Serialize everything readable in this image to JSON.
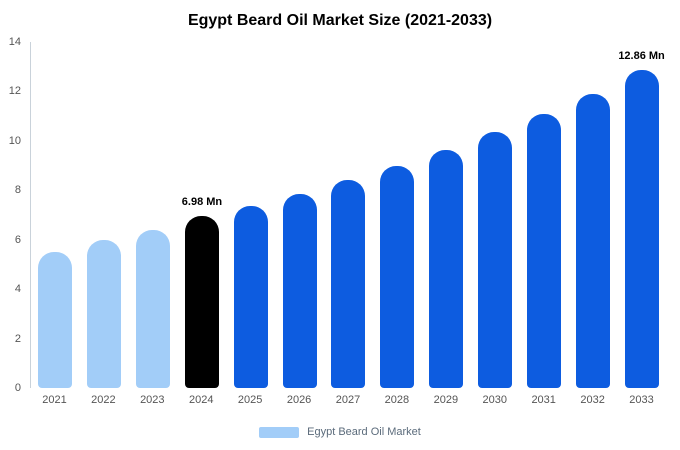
{
  "chart_data": {
    "type": "bar",
    "title": "Egypt Beard Oil Market Size (2021-2033)",
    "xlabel": "",
    "ylabel": "",
    "ylim": [
      0,
      14
    ],
    "yticks": [
      0,
      2,
      4,
      6,
      8,
      10,
      12,
      14
    ],
    "grid": false,
    "categories": [
      "2021",
      "2022",
      "2023",
      "2024",
      "2025",
      "2026",
      "2027",
      "2028",
      "2029",
      "2030",
      "2031",
      "2032",
      "2033"
    ],
    "values": [
      5.5,
      6.0,
      6.4,
      6.98,
      7.35,
      7.85,
      8.4,
      9.0,
      9.65,
      10.35,
      11.1,
      11.9,
      12.86
    ],
    "bar_colors": [
      "#a2cdf8",
      "#a2cdf8",
      "#a2cdf8",
      "#000000",
      "#0d5ce0",
      "#0d5ce0",
      "#0d5ce0",
      "#0d5ce0",
      "#0d5ce0",
      "#0d5ce0",
      "#0d5ce0",
      "#0d5ce0",
      "#0d5ce0"
    ],
    "annotations": [
      {
        "category": "2024",
        "text": "6.98 Mn"
      },
      {
        "category": "2033",
        "text": "12.86 Mn"
      }
    ],
    "colors": {
      "light_blue": "#a2cdf8",
      "blue": "#0d5ce0",
      "black": "#000000",
      "axis_text": "#555555"
    },
    "legend": {
      "label": "Egypt Beard Oil Market",
      "swatch_color": "#a2cdf8",
      "position": "bottom"
    }
  }
}
